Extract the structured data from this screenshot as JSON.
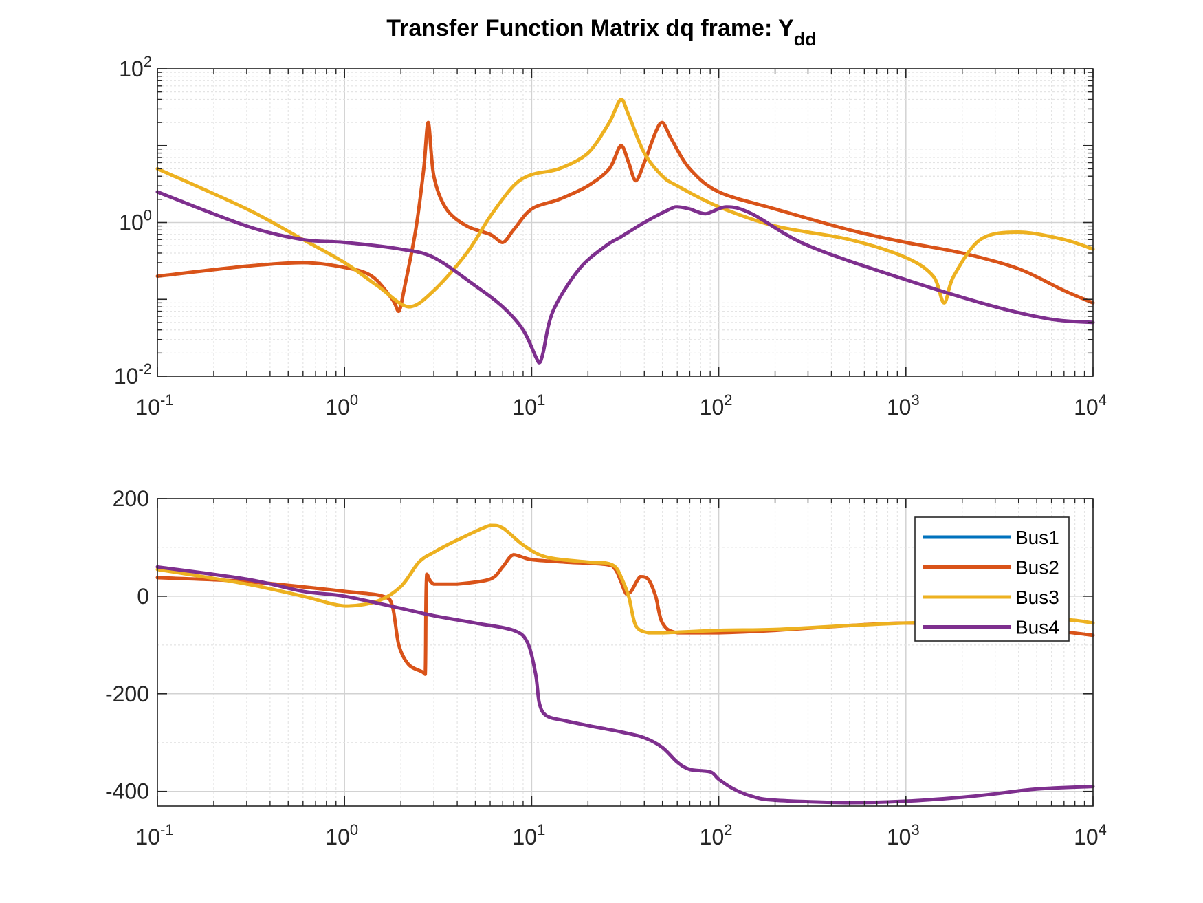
{
  "figure": {
    "title": "Transfer Function Matrix dq frame: Y",
    "title_subscript": "dd"
  },
  "colors": {
    "Bus1": "#0072BD",
    "Bus2": "#D95319",
    "Bus3": "#EDB120",
    "Bus4": "#7E2F8E",
    "axis": "#262626",
    "grid": "#d9d9d9"
  },
  "chart_data": [
    {
      "type": "line",
      "panel": "magnitude",
      "x_scale": "log",
      "y_scale": "log",
      "xlim": [
        0.1,
        10000
      ],
      "ylim": [
        0.01,
        100
      ],
      "x_ticks": [
        {
          "base": "10",
          "exp": "-1"
        },
        {
          "base": "10",
          "exp": "0"
        },
        {
          "base": "10",
          "exp": "1"
        },
        {
          "base": "10",
          "exp": "2"
        },
        {
          "base": "10",
          "exp": "3"
        },
        {
          "base": "10",
          "exp": "4"
        }
      ],
      "y_ticks": [
        {
          "base": "10",
          "exp": "-2"
        },
        {
          "base": "10",
          "exp": "0"
        },
        {
          "base": "10",
          "exp": "2"
        }
      ],
      "grid": true,
      "series": [
        {
          "name": "Bus1",
          "color_key": "Bus1",
          "x": [],
          "y": []
        },
        {
          "name": "Bus2",
          "color_key": "Bus2",
          "x": [
            0.1,
            0.3,
            0.6,
            1.0,
            1.4,
            1.8,
            1.95,
            2.1,
            2.4,
            2.65,
            2.8,
            3.0,
            3.5,
            4.5,
            6.0,
            7.0,
            8.0,
            10.0,
            14.0,
            20.0,
            26.0,
            30.0,
            33.0,
            36.0,
            40.0,
            46.0,
            50.0,
            56.0,
            70.0,
            100.0,
            200.0,
            500.0,
            1000.0,
            2000.0,
            4000.0,
            7000.0,
            10000.0
          ],
          "y": [
            0.2,
            0.27,
            0.3,
            0.26,
            0.2,
            0.1,
            0.07,
            0.15,
            0.8,
            5.0,
            20.0,
            4.0,
            1.5,
            0.9,
            0.7,
            0.55,
            0.8,
            1.5,
            2.0,
            3.0,
            5.0,
            10.0,
            6.0,
            3.5,
            6.0,
            15.0,
            20.0,
            12.0,
            5.0,
            2.5,
            1.5,
            0.8,
            0.55,
            0.4,
            0.25,
            0.13,
            0.09
          ]
        },
        {
          "name": "Bus3",
          "color_key": "Bus3",
          "x": [
            0.1,
            0.3,
            0.6,
            1.0,
            1.5,
            2.2,
            3.0,
            4.5,
            6.0,
            8.0,
            10.0,
            14.0,
            20.0,
            26.0,
            30.0,
            33.0,
            40.0,
            50.0,
            60.0,
            100.0,
            200.0,
            500.0,
            1000.0,
            1400.0,
            1600.0,
            1800.0,
            2500.0,
            4000.0,
            7000.0,
            10000.0
          ],
          "y": [
            5.0,
            1.5,
            0.6,
            0.3,
            0.15,
            0.08,
            0.13,
            0.4,
            1.2,
            3.0,
            4.2,
            5.0,
            8.0,
            20.0,
            40.0,
            25.0,
            8.0,
            4.0,
            3.0,
            1.6,
            0.9,
            0.6,
            0.35,
            0.2,
            0.09,
            0.2,
            0.6,
            0.75,
            0.6,
            0.45
          ]
        },
        {
          "name": "Bus4",
          "color_key": "Bus4",
          "x": [
            0.1,
            0.3,
            0.6,
            1.0,
            2.0,
            3.0,
            5.0,
            7.0,
            9.0,
            10.5,
            11.0,
            11.5,
            13.0,
            18.0,
            25.0,
            30.0,
            40.0,
            55.0,
            60.0,
            70.0,
            85.0,
            110.0,
            150.0,
            300.0,
            1000.0,
            3000.0,
            6000.0,
            10000.0
          ],
          "y": [
            2.5,
            0.9,
            0.6,
            0.55,
            0.45,
            0.35,
            0.15,
            0.08,
            0.04,
            0.018,
            0.015,
            0.02,
            0.07,
            0.25,
            0.5,
            0.65,
            1.0,
            1.5,
            1.6,
            1.5,
            1.3,
            1.6,
            1.3,
            0.5,
            0.18,
            0.08,
            0.055,
            0.05
          ]
        }
      ]
    },
    {
      "type": "line",
      "panel": "phase",
      "x_scale": "log",
      "y_scale": "linear",
      "xlim": [
        0.1,
        10000
      ],
      "ylim": [
        -430,
        200
      ],
      "x_ticks": [
        {
          "base": "10",
          "exp": "-1"
        },
        {
          "base": "10",
          "exp": "0"
        },
        {
          "base": "10",
          "exp": "1"
        },
        {
          "base": "10",
          "exp": "2"
        },
        {
          "base": "10",
          "exp": "3"
        },
        {
          "base": "10",
          "exp": "4"
        }
      ],
      "y_ticks": [
        {
          "value": 200,
          "label": "200"
        },
        {
          "value": 0,
          "label": "0"
        },
        {
          "value": -200,
          "label": "-200"
        },
        {
          "value": -400,
          "label": "-400"
        }
      ],
      "grid": true,
      "legend": {
        "placement": "top-right",
        "entries": [
          "Bus1",
          "Bus2",
          "Bus3",
          "Bus4"
        ]
      },
      "series": [
        {
          "name": "Bus1",
          "color_key": "Bus1",
          "x": [],
          "y": []
        },
        {
          "name": "Bus2",
          "color_key": "Bus2",
          "x": [
            0.1,
            0.3,
            1.0,
            1.6,
            1.8,
            1.95,
            2.2,
            2.6,
            2.7,
            2.75,
            3.0,
            4.0,
            6.0,
            7.0,
            8.0,
            10.0,
            15.0,
            25.0,
            28.0,
            30.0,
            32.0,
            34.0,
            38.0,
            42.0,
            46.0,
            50.0,
            60.0,
            100.0,
            200.0,
            500.0,
            1000.0,
            3000.0,
            10000.0
          ],
          "y": [
            38,
            30,
            10,
            0,
            -20,
            -100,
            -140,
            -155,
            -160,
            45,
            25,
            25,
            35,
            60,
            85,
            75,
            70,
            65,
            55,
            30,
            5,
            10,
            40,
            35,
            0,
            -55,
            -75,
            -75,
            -70,
            -60,
            -55,
            -58,
            -80
          ]
        },
        {
          "name": "Bus3",
          "color_key": "Bus3",
          "x": [
            0.1,
            0.3,
            0.6,
            1.0,
            1.5,
            2.0,
            2.5,
            3.0,
            4.0,
            6.0,
            7.0,
            9.0,
            12.0,
            20.0,
            25.0,
            28.0,
            30.0,
            33.0,
            36.0,
            42.0,
            50.0,
            100.0,
            200.0,
            500.0,
            1000.0,
            3000.0,
            7000.0,
            10000.0
          ],
          "y": [
            55,
            25,
            0,
            -20,
            -10,
            20,
            70,
            90,
            115,
            145,
            140,
            105,
            80,
            70,
            68,
            60,
            40,
            0,
            -60,
            -75,
            -75,
            -70,
            -68,
            -60,
            -55,
            -50,
            -48,
            -55
          ]
        },
        {
          "name": "Bus4",
          "color_key": "Bus4",
          "x": [
            0.1,
            0.3,
            0.6,
            1.0,
            2.0,
            3.0,
            5.0,
            8.0,
            9.5,
            10.5,
            11.0,
            12.0,
            15.0,
            20.0,
            25.0,
            30.0,
            40.0,
            50.0,
            60.0,
            70.0,
            90.0,
            100.0,
            120.0,
            150.0,
            200.0,
            500.0,
            1000.0,
            2000.0,
            3000.0,
            5000.0,
            10000.0
          ],
          "y": [
            60,
            35,
            10,
            0,
            -25,
            -40,
            -55,
            -70,
            -95,
            -160,
            -220,
            -245,
            -255,
            -265,
            -272,
            -278,
            -290,
            -310,
            -340,
            -355,
            -360,
            -375,
            -395,
            -410,
            -418,
            -423,
            -420,
            -412,
            -405,
            -395,
            -390
          ]
        }
      ]
    }
  ]
}
